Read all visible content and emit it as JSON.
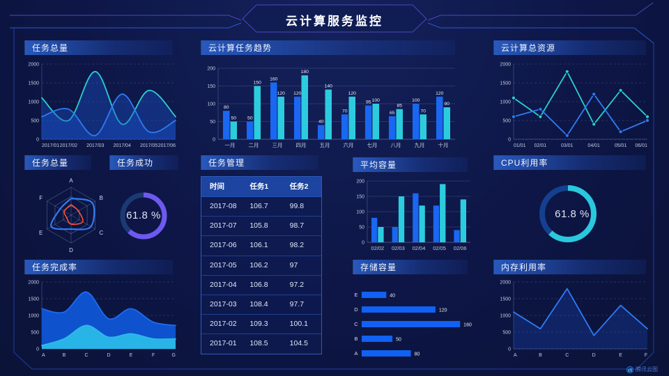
{
  "header": {
    "title": "云计算服务监控"
  },
  "watermark": {
    "label": "腾讯云图"
  },
  "colors": {
    "blue": "#1a67f2",
    "cyan": "#2cccdf",
    "purple": "#6e59f0",
    "red": "#ff5336",
    "panel_header": "#1e50ae"
  },
  "chart_data": [
    {
      "id": "taskTotalArea",
      "type": "line",
      "title": "任务总量",
      "x": [
        "2017/01",
        "2017/02",
        "2017/03",
        "2017/04",
        "2017/05",
        "2017/06"
      ],
      "series": [
        {
          "name": "series-cyan",
          "color": "#2bd0ce",
          "values": [
            1100,
            500,
            1800,
            400,
            1300,
            600
          ],
          "fill": "#1a55d0",
          "fillOpacity": 0.38
        },
        {
          "name": "series-blue",
          "color": "#2f7bf2",
          "values": [
            600,
            800,
            100,
            1200,
            200,
            500
          ],
          "fill": "#1a55d0",
          "fillOpacity": 0.38
        }
      ],
      "ylim": [
        0,
        2000
      ],
      "yticks": [
        0,
        500,
        1000,
        1500,
        2000
      ],
      "smooth": true,
      "area": true,
      "markers": false,
      "grid": "dashed"
    },
    {
      "id": "taskTrend",
      "type": "bar",
      "title": "云计算任务趋势",
      "categories": [
        "一月",
        "二月",
        "三月",
        "四月",
        "五月",
        "六月",
        "七月",
        "八月",
        "九月",
        "十月"
      ],
      "series": [
        {
          "name": "任务1",
          "color": "#1a67f2",
          "values": [
            80,
            50,
            160,
            120,
            40,
            70,
            95,
            65,
            100,
            120
          ]
        },
        {
          "name": "任务2",
          "color": "#2cccdf",
          "values": [
            50,
            150,
            120,
            180,
            140,
            120,
            100,
            85,
            70,
            90
          ]
        }
      ],
      "ylim": [
        0,
        200
      ],
      "yticks": [
        0,
        50,
        100,
        150,
        200
      ],
      "value_labels": true,
      "grid": "solid"
    },
    {
      "id": "totalResources",
      "type": "line",
      "title": "云计算总资源",
      "x": [
        "01/01",
        "02/01",
        "03/01",
        "04/01",
        "05/01",
        "06/01"
      ],
      "series": [
        {
          "name": "series-cyan",
          "color": "#2bd0ce",
          "values": [
            1100,
            600,
            1800,
            400,
            1300,
            600
          ]
        },
        {
          "name": "series-blue",
          "color": "#2f7bf2",
          "values": [
            600,
            800,
            100,
            1200,
            200,
            500
          ]
        }
      ],
      "ylim": [
        0,
        2000
      ],
      "yticks": [
        0,
        500,
        1000,
        1500,
        2000
      ],
      "smooth": false,
      "area": false,
      "markers": true,
      "grid": "dashed"
    },
    {
      "id": "taskRadar",
      "type": "radar",
      "title": "任务总量",
      "axes": [
        "A",
        "B",
        "C",
        "D",
        "E",
        "F"
      ],
      "max": 100,
      "series": [
        {
          "name": "series-blue",
          "color": "#2f7bf2",
          "values": [
            60,
            88,
            82,
            50,
            82,
            45
          ]
        },
        {
          "name": "series-red",
          "color": "#ff5336",
          "values": [
            38,
            30,
            48,
            32,
            18,
            28
          ]
        }
      ]
    },
    {
      "id": "taskSuccess",
      "type": "donut",
      "title": "任务成功",
      "percent": 61.8,
      "label": "61.8 %",
      "color": "#6e59f0",
      "track": "#1b3a74"
    },
    {
      "id": "taskTable",
      "type": "table",
      "title": "任务管理",
      "columns": [
        "时间",
        "任务1",
        "任务2"
      ],
      "rows": [
        [
          "2017-08",
          "106.7",
          "99.8"
        ],
        [
          "2017-07",
          "105.8",
          "98.7"
        ],
        [
          "2017-06",
          "106.1",
          "98.2"
        ],
        [
          "2017-05",
          "106.2",
          "97"
        ],
        [
          "2017-04",
          "106.8",
          "97.2"
        ],
        [
          "2017-03",
          "108.4",
          "97.7"
        ],
        [
          "2017-02",
          "109.3",
          "100.1"
        ],
        [
          "2017-01",
          "108.5",
          "104.5"
        ]
      ]
    },
    {
      "id": "avgCapacity",
      "type": "bar",
      "title": "平均容量",
      "categories": [
        "02/02",
        "02/03",
        "02/04",
        "02/05",
        "02/06"
      ],
      "series": [
        {
          "name": "series-blue",
          "color": "#1a67f2",
          "values": [
            80,
            50,
            160,
            120,
            40
          ]
        },
        {
          "name": "series-cyan",
          "color": "#2cccdf",
          "values": [
            50,
            150,
            120,
            190,
            140
          ]
        }
      ],
      "ylim": [
        0,
        200
      ],
      "yticks": [
        0,
        50,
        100,
        150,
        200
      ],
      "value_labels": false,
      "grid": "solid"
    },
    {
      "id": "cpuUsage",
      "type": "donut",
      "title": "CPU利用率",
      "percent": 61.8,
      "label": "61.8 %",
      "color": "#29c8dd",
      "track": "#14408f"
    },
    {
      "id": "completionRate",
      "type": "line",
      "title": "任务完成率",
      "x": [
        "A",
        "B",
        "C",
        "D",
        "E",
        "F",
        "G"
      ],
      "series": [
        {
          "name": "series-blue",
          "color": "#1e6bf0",
          "values": [
            1200,
            1100,
            1700,
            900,
            1200,
            800,
            700
          ],
          "fill": "#0f55d6",
          "fillOpacity": 0.95
        },
        {
          "name": "series-cyan",
          "color": "#2fb9e9",
          "values": [
            100,
            300,
            700,
            350,
            450,
            300,
            300
          ],
          "fill": "#29b4e8",
          "fillOpacity": 1
        }
      ],
      "ylim": [
        0,
        2000
      ],
      "yticks": [
        0,
        500,
        1000,
        1500,
        2000
      ],
      "smooth": true,
      "area": true,
      "markers": false,
      "grid": "dashed"
    },
    {
      "id": "storage",
      "type": "hbar",
      "title": "存储容量",
      "categories": [
        "E",
        "D",
        "C",
        "B",
        "A"
      ],
      "values": [
        40,
        120,
        160,
        50,
        80
      ],
      "color": "#1161f3",
      "xmax": 170
    },
    {
      "id": "memory",
      "type": "line",
      "title": "内存利用率",
      "x": [
        "A",
        "B",
        "C",
        "D",
        "E",
        "F"
      ],
      "series": [
        {
          "name": "series-blue",
          "color": "#2e7bf5",
          "values": [
            1100,
            600,
            1800,
            400,
            1300,
            600
          ],
          "fill": "#1a4abe",
          "fillOpacity": 0.3
        }
      ],
      "ylim": [
        0,
        2000
      ],
      "yticks": [
        0,
        500,
        1000,
        1500,
        2000
      ],
      "smooth": false,
      "area": true,
      "markers": false,
      "grid": "dashed"
    }
  ]
}
